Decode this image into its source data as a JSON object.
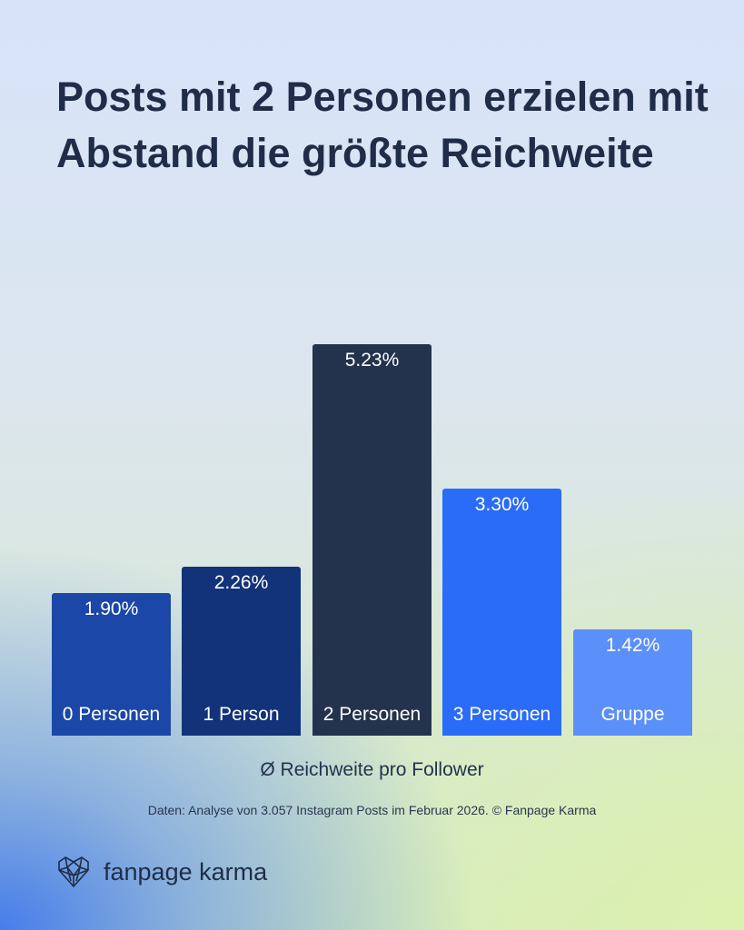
{
  "title": "Posts mit 2 Personen erzielen mit Abstand die größte Reichweite",
  "chart_data": {
    "type": "bar",
    "categories": [
      "0 Personen",
      "1 Person",
      "2 Personen",
      "3 Personen",
      "Gruppe"
    ],
    "values": [
      1.9,
      2.26,
      5.23,
      3.3,
      1.42
    ],
    "value_labels": [
      "1.90%",
      "2.26%",
      "5.23%",
      "3.30%",
      "1.42%"
    ],
    "colors": [
      "#1a47a8",
      "#12337a",
      "#24334d",
      "#2a6cf7",
      "#5b8ff9"
    ],
    "xlabel": "Ø Reichweite pro Follower",
    "ylabel": "",
    "ylim": [
      0,
      5.23
    ],
    "grid": false
  },
  "footnote": "Daten: Analyse von 3.057 Instagram Posts im Februar 2026. © Fanpage Karma",
  "brand": {
    "name": "fanpage karma",
    "icon": "heart-network-icon"
  }
}
